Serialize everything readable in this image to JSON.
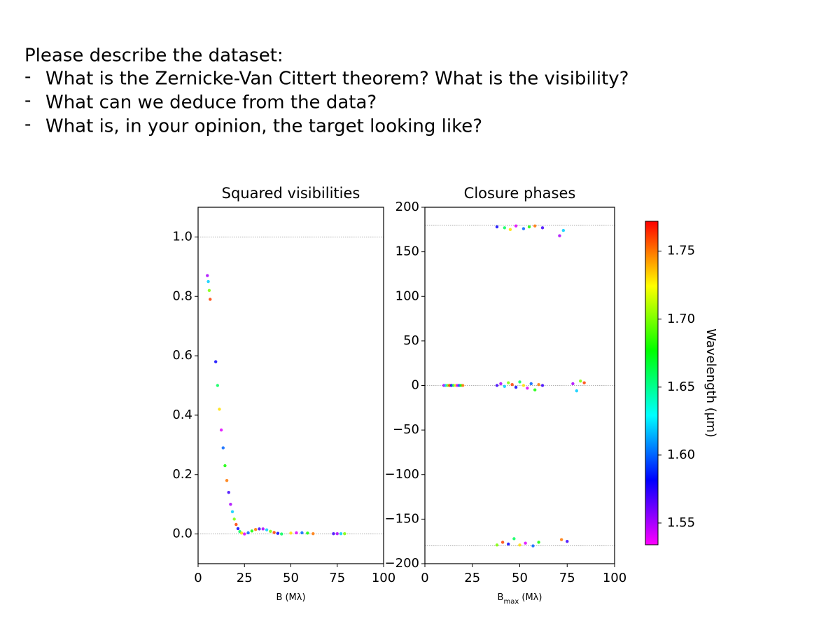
{
  "header": {
    "title": "Please describe the dataset:",
    "bullets": [
      "What is the Zernicke-Van Cittert theorem? What is the visibility?",
      "What can we deduce from the data?",
      "What is, in your opinion, the target looking like?"
    ],
    "bullet_marker": "-"
  },
  "chart_data": [
    {
      "type": "scatter",
      "title": "Squared visibilities",
      "xlabel": "B (Mλ)",
      "xlim": [
        0,
        100
      ],
      "xticks": [
        0,
        25,
        50,
        75,
        100
      ],
      "ylim": [
        -0.1,
        1.1
      ],
      "yticks": [
        {
          "value": 0,
          "label": "0.0"
        },
        0.2,
        0.4,
        0.6,
        0.8,
        {
          "value": 1,
          "label": "1.0"
        }
      ],
      "hlines": [
        0,
        1
      ],
      "x": [
        5.0,
        5.5,
        6.0,
        6.5,
        9.5,
        10.5,
        11.5,
        12.5,
        13.5,
        14.5,
        15.5,
        16.5,
        17.5,
        18.5,
        19.5,
        20.5,
        21.5,
        22.5,
        23.5,
        25,
        27,
        29,
        31,
        33,
        35,
        37,
        39,
        41,
        43,
        45,
        50,
        53,
        56,
        59,
        62,
        73,
        75,
        77,
        79
      ],
      "y": [
        0.87,
        0.85,
        0.82,
        0.79,
        0.58,
        0.5,
        0.42,
        0.35,
        0.29,
        0.23,
        0.18,
        0.14,
        0.1,
        0.075,
        0.05,
        0.032,
        0.018,
        0.008,
        0.003,
        0.0,
        0.004,
        0.01,
        0.015,
        0.017,
        0.017,
        0.014,
        0.009,
        0.005,
        0.002,
        0.0,
        0.003,
        0.004,
        0.004,
        0.003,
        0.001,
        0.001,
        0.001,
        0.001,
        0.001
      ],
      "wavelength": [
        1.55,
        1.62,
        1.7,
        1.76,
        1.58,
        1.66,
        1.73,
        1.54,
        1.6,
        1.68,
        1.75,
        1.57,
        1.55,
        1.62,
        1.7,
        1.76,
        1.58,
        1.66,
        1.73,
        1.54,
        1.6,
        1.68,
        1.75,
        1.57,
        1.55,
        1.62,
        1.7,
        1.76,
        1.58,
        1.66,
        1.73,
        1.54,
        1.6,
        1.68,
        1.75,
        1.57,
        1.55,
        1.62,
        1.7
      ]
    },
    {
      "type": "scatter",
      "title": "Closure phases",
      "xlabel": "B",
      "xlabel_sub": "max",
      "xlabel_rest": " (Mλ)",
      "xlim": [
        0,
        100
      ],
      "xticks": [
        0,
        25,
        50,
        75,
        100
      ],
      "ylim": [
        -200,
        200
      ],
      "yticks": [
        {
          "value": -200,
          "label": "−200"
        },
        {
          "value": -150,
          "label": "−150"
        },
        {
          "value": -100,
          "label": "−100"
        },
        {
          "value": -50,
          "label": "−50"
        },
        0,
        50,
        100,
        150,
        200
      ],
      "hlines": [
        -180,
        0,
        180
      ],
      "x": [
        10,
        11,
        12,
        13,
        14,
        15,
        16,
        17,
        18,
        19,
        20,
        38,
        40,
        42,
        44,
        46,
        48,
        50,
        52,
        54,
        56,
        58,
        60,
        62,
        78,
        80,
        82,
        84,
        38,
        42,
        45,
        48,
        52,
        55,
        58,
        62,
        71,
        73,
        38,
        41,
        44,
        47,
        50,
        53,
        57,
        60,
        72,
        75
      ],
      "y": [
        0,
        0,
        0,
        0,
        0,
        0,
        0,
        0,
        0,
        0,
        0,
        0,
        2,
        -1,
        3,
        1,
        -2,
        4,
        0,
        -3,
        2,
        -5,
        1,
        0,
        2,
        -6,
        5,
        3,
        178,
        177,
        175,
        179,
        176,
        178,
        179,
        177,
        168,
        174,
        -179,
        -176,
        -178,
        -172,
        -179,
        -177,
        -180,
        -176,
        -173,
        -175
      ],
      "wavelength": [
        1.55,
        1.62,
        1.7,
        1.76,
        1.58,
        1.66,
        1.73,
        1.54,
        1.6,
        1.68,
        1.75,
        1.57,
        1.55,
        1.62,
        1.7,
        1.76,
        1.58,
        1.66,
        1.73,
        1.54,
        1.6,
        1.68,
        1.75,
        1.57,
        1.55,
        1.62,
        1.7,
        1.76,
        1.58,
        1.66,
        1.73,
        1.54,
        1.6,
        1.68,
        1.75,
        1.57,
        1.55,
        1.62,
        1.7,
        1.76,
        1.58,
        1.66,
        1.73,
        1.54,
        1.6,
        1.68,
        1.75,
        1.57
      ]
    }
  ],
  "colorbar": {
    "label": "Wavelength (μm)",
    "colormap": "gist_rainbow_r",
    "clim": [
      1.534,
      1.772
    ],
    "ticks": [
      1.55,
      {
        "value": 1.6,
        "label": "1.60"
      },
      1.65,
      {
        "value": 1.7,
        "label": "1.70"
      },
      1.75
    ]
  }
}
